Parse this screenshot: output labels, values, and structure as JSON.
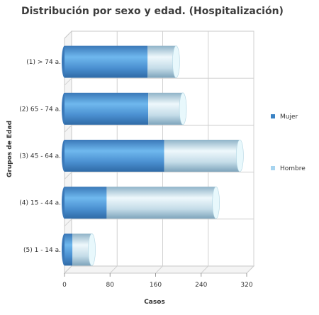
{
  "chart_data": {
    "type": "bar",
    "orientation": "horizontal",
    "stacked": true,
    "title": "Distribución por sexo y edad. (Hospitalización)",
    "xlabel": "Casos",
    "ylabel": "Grupos de Edad",
    "categories": [
      "(1) > 74 a.",
      "(2) 65 - 74 a.",
      "(3) 45 - 64 a.",
      "(4) 15 - 44 a.",
      "(5) 1 - 14 a."
    ],
    "series": [
      {
        "name": "Mujer",
        "values": [
          146,
          147,
          175,
          74,
          14
        ],
        "color": "#4a8fd0"
      },
      {
        "name": "Hombre",
        "values": [
          50,
          61,
          133,
          192,
          34
        ],
        "color": "#b8dbe8"
      }
    ],
    "xlim": [
      0,
      320
    ],
    "xticks": [
      "0",
      "80",
      "160",
      "240",
      "320"
    ],
    "grid": true,
    "legend_position": "right"
  }
}
